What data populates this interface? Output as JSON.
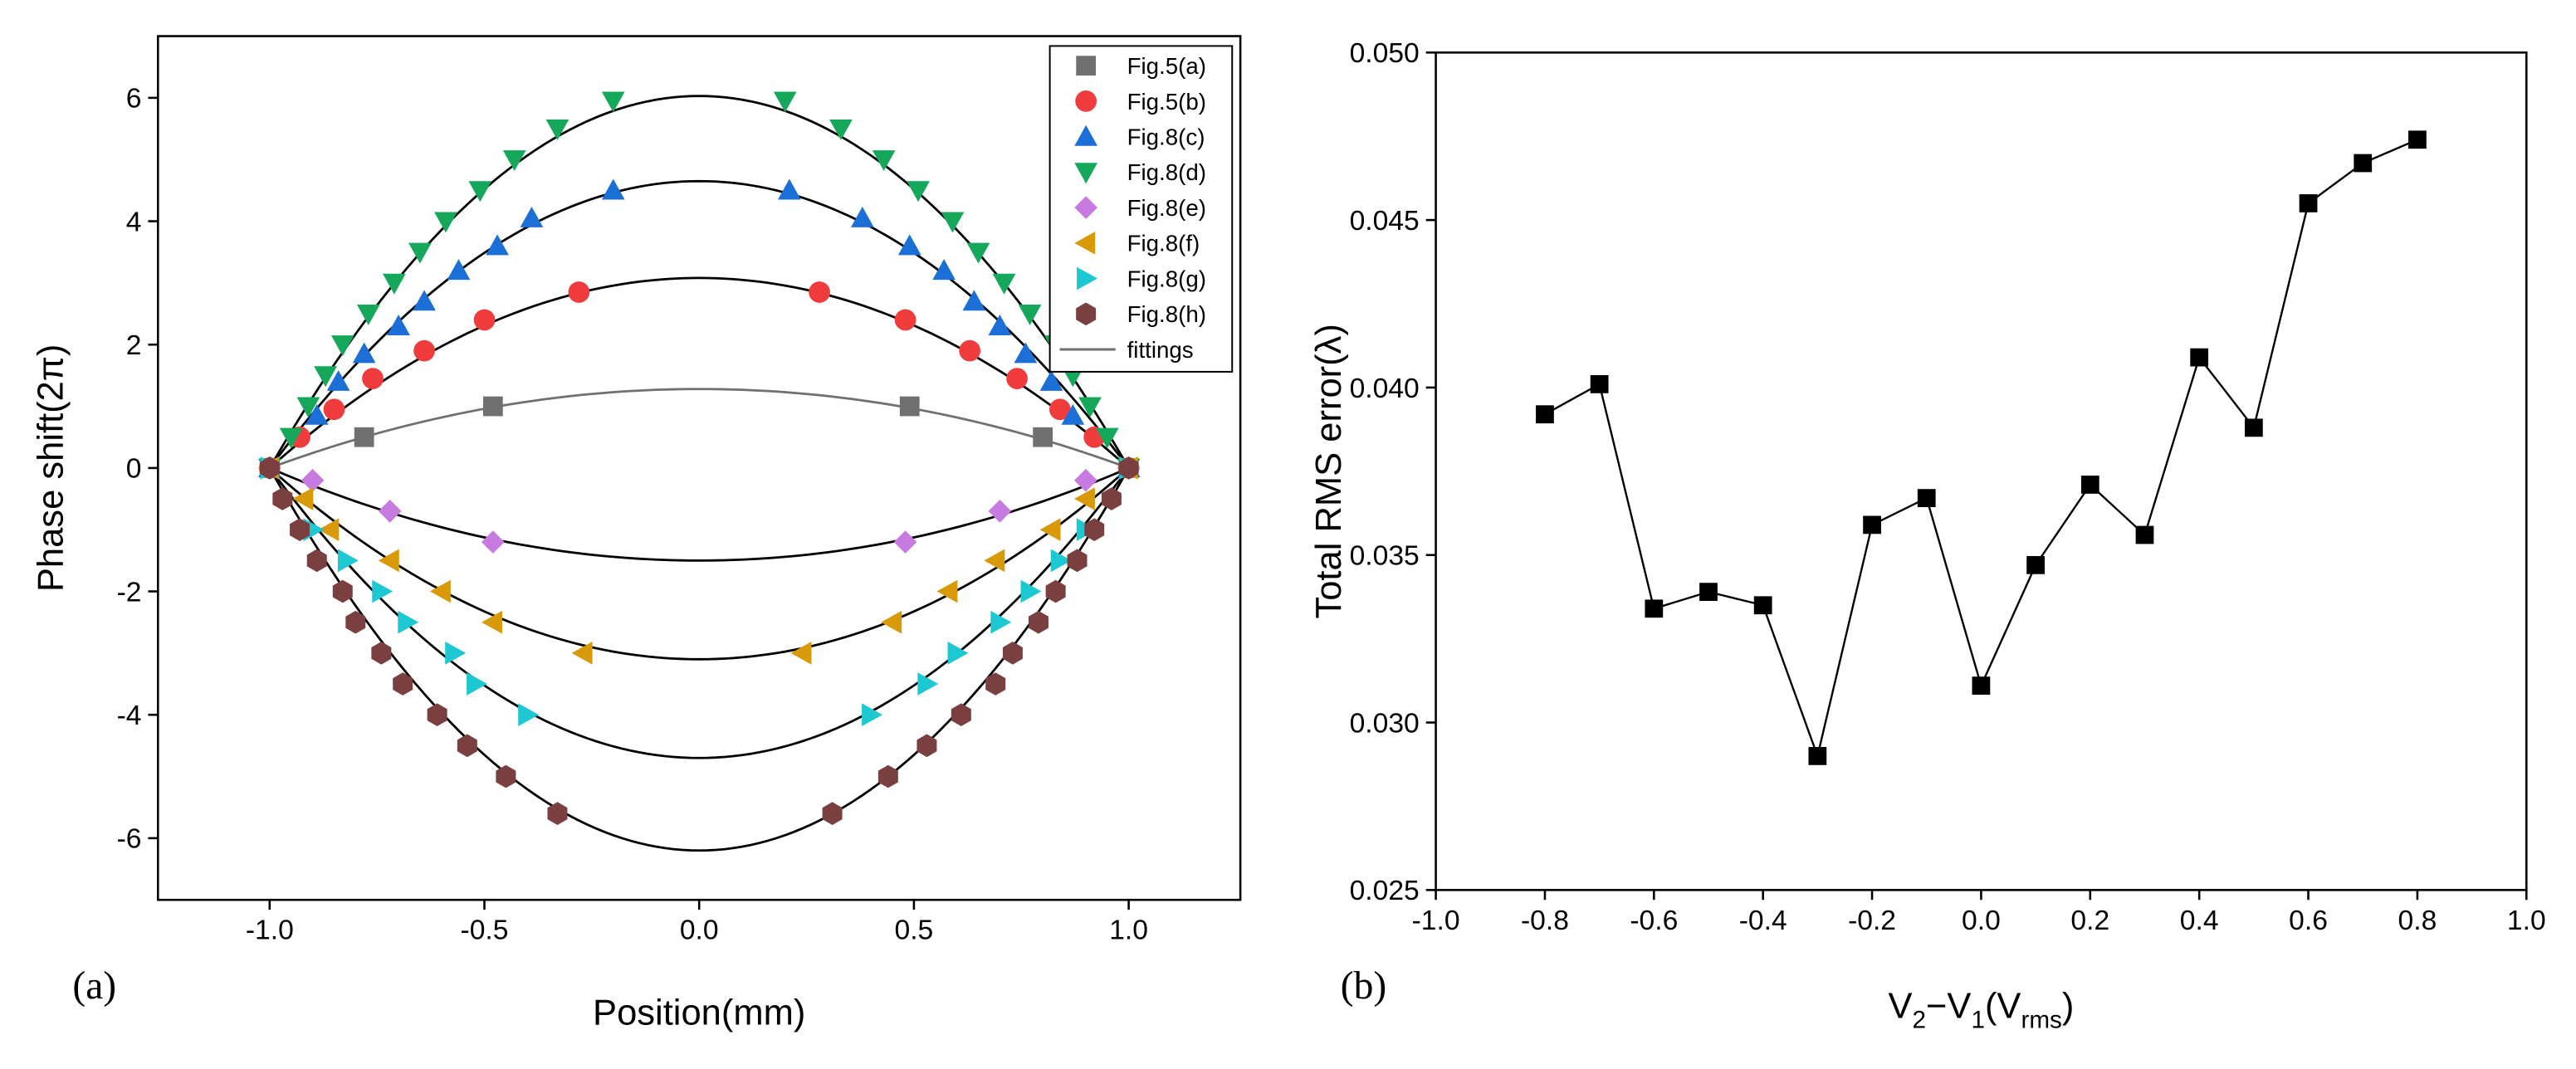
{
  "chart_data": [
    {
      "type": "scatter",
      "panel_label": "(a)",
      "x_label": "Position(mm)",
      "y_label": "Phase shift(2π)",
      "xlim": [
        -1.26,
        1.26
      ],
      "ylim": [
        -7,
        7
      ],
      "xticks": [
        {
          "value": -1,
          "label": "-1.0"
        },
        {
          "value": -0.5,
          "label": "-0.5"
        },
        {
          "value": 0,
          "label": "0.0"
        },
        {
          "value": 0.5,
          "label": "0.5"
        },
        {
          "value": 1,
          "label": "1.0"
        }
      ],
      "yticks": [
        -6,
        -4,
        -2,
        0,
        2,
        4,
        6
      ],
      "legend": "upper right",
      "series": [
        {
          "name": "Fig.5(a)",
          "color": "#707070",
          "marker": "square",
          "x": [
            -1,
            -0.78,
            -0.48,
            0.49,
            0.8,
            1
          ],
          "values": [
            0,
            0.5,
            1,
            1,
            0.5,
            0
          ]
        },
        {
          "name": "Fig.5(b)",
          "color": "#f03c3c",
          "marker": "circle",
          "x": [
            -1,
            -0.93,
            -0.85,
            -0.76,
            -0.64,
            -0.5,
            -0.28,
            0.28,
            0.48,
            0.63,
            0.74,
            0.84,
            0.92,
            1
          ],
          "values": [
            0,
            0.5,
            0.95,
            1.45,
            1.9,
            2.4,
            2.85,
            2.85,
            2.4,
            1.9,
            1.45,
            0.95,
            0.5,
            0
          ]
        },
        {
          "name": "Fig.8(c)",
          "color": "#1b6fd6",
          "marker": "triangle-up",
          "x": [
            -1,
            -0.89,
            -0.84,
            -0.78,
            -0.7,
            -0.64,
            -0.56,
            -0.47,
            -0.39,
            -0.2,
            0.21,
            0.38,
            0.49,
            0.57,
            0.64,
            0.7,
            0.76,
            0.82,
            0.87,
            1
          ],
          "values": [
            0,
            0.85,
            1.4,
            1.85,
            2.3,
            2.7,
            3.2,
            3.6,
            4.05,
            4.5,
            4.5,
            4.05,
            3.6,
            3.2,
            2.7,
            2.3,
            1.85,
            1.4,
            0.85,
            0
          ]
        },
        {
          "name": "Fig.8(d)",
          "color": "#15a85a",
          "marker": "triangle-down",
          "x": [
            -1,
            -0.95,
            -0.91,
            -0.87,
            -0.83,
            -0.77,
            -0.71,
            -0.65,
            -0.59,
            -0.51,
            -0.43,
            -0.33,
            -0.2,
            0.2,
            0.33,
            0.43,
            0.51,
            0.59,
            0.65,
            0.71,
            0.77,
            0.83,
            0.87,
            0.91,
            0.95,
            1
          ],
          "values": [
            0,
            0.5,
            1,
            1.5,
            2,
            2.5,
            3,
            3.5,
            4,
            4.5,
            5,
            5.5,
            5.95,
            5.95,
            5.5,
            5,
            4.5,
            4,
            3.5,
            3,
            2.5,
            2,
            1.5,
            1,
            0.5,
            0
          ]
        },
        {
          "name": "Fig.8(e)",
          "color": "#c77be0",
          "marker": "diamond",
          "x": [
            -1,
            -0.9,
            -0.72,
            -0.48,
            0.48,
            0.7,
            0.9,
            1
          ],
          "values": [
            0,
            -0.2,
            -0.7,
            -1.2,
            -1.2,
            -0.7,
            -0.2,
            0
          ]
        },
        {
          "name": "Fig.8(f)",
          "color": "#d99a0a",
          "marker": "triangle-left",
          "x": [
            -1,
            -0.92,
            -0.86,
            -0.72,
            -0.6,
            -0.48,
            -0.27,
            0.24,
            0.45,
            0.58,
            0.69,
            0.82,
            0.9,
            1
          ],
          "values": [
            0,
            -0.5,
            -1,
            -1.5,
            -2,
            -2.5,
            -3,
            -3,
            -2.5,
            -2,
            -1.5,
            -1,
            -0.5,
            0
          ]
        },
        {
          "name": "Fig.8(g)",
          "color": "#1ec8d2",
          "marker": "triangle-right",
          "x": [
            -1,
            -0.9,
            -0.82,
            -0.74,
            -0.68,
            -0.57,
            -0.52,
            -0.4,
            0.4,
            0.53,
            0.6,
            0.7,
            0.77,
            0.84,
            0.9,
            1
          ],
          "values": [
            0,
            -1,
            -1.5,
            -2,
            -2.5,
            -3,
            -3.5,
            -4,
            -4,
            -3.5,
            -3,
            -2.5,
            -2,
            -1.5,
            -1,
            0
          ]
        },
        {
          "name": "Fig.8(h)",
          "color": "#7a4040",
          "marker": "hexagon",
          "x": [
            -1,
            -0.97,
            -0.93,
            -0.89,
            -0.83,
            -0.8,
            -0.74,
            -0.69,
            -0.61,
            -0.54,
            -0.45,
            -0.33,
            0.31,
            0.44,
            0.53,
            0.61,
            0.69,
            0.73,
            0.79,
            0.83,
            0.88,
            0.92,
            0.96,
            1
          ],
          "values": [
            0,
            -0.5,
            -1,
            -1.5,
            -2,
            -2.5,
            -3,
            -3.5,
            -4,
            -4.5,
            -5,
            -5.6,
            -5.6,
            -5,
            -4.5,
            -4,
            -3.5,
            -3,
            -2.5,
            -2,
            -1.5,
            -1,
            -0.5,
            0
          ]
        },
        {
          "name": "fittings",
          "color": "#707070",
          "marker": "line",
          "fit_peaks": [
            1.28,
            3.08,
            4.65,
            6.03,
            -1.5,
            -3.1,
            -4.7,
            -6.2
          ],
          "curve_colors": [
            "#707070",
            "#000000",
            "#000000",
            "#000000",
            "#000000",
            "#000000",
            "#000000",
            "#000000"
          ]
        }
      ]
    },
    {
      "type": "line",
      "panel_label": "(b)",
      "x_label_parts": [
        "V",
        "2",
        "−V",
        "1",
        "(V",
        "rms",
        ")"
      ],
      "y_label": "Total RMS error(λ)",
      "xlim": [
        -1,
        1
      ],
      "ylim": [
        0.025,
        0.05
      ],
      "xticks": [
        {
          "value": -1,
          "label": "-1.0"
        },
        {
          "value": -0.8,
          "label": "-0.8"
        },
        {
          "value": -0.6,
          "label": "-0.6"
        },
        {
          "value": -0.4,
          "label": "-0.4"
        },
        {
          "value": -0.2,
          "label": "-0.2"
        },
        {
          "value": 0,
          "label": "0.0"
        },
        {
          "value": 0.2,
          "label": "0.2"
        },
        {
          "value": 0.4,
          "label": "0.4"
        },
        {
          "value": 0.6,
          "label": "0.6"
        },
        {
          "value": 0.8,
          "label": "0.8"
        },
        {
          "value": 1,
          "label": "1.0"
        }
      ],
      "yticks": [
        {
          "value": 0.025,
          "label": "0.025"
        },
        {
          "value": 0.03,
          "label": "0.030"
        },
        {
          "value": 0.035,
          "label": "0.035"
        },
        {
          "value": 0.04,
          "label": "0.040"
        },
        {
          "value": 0.045,
          "label": "0.045"
        },
        {
          "value": 0.05,
          "label": "0.050"
        }
      ],
      "color": "#000000",
      "x": [
        -0.8,
        -0.7,
        -0.6,
        -0.5,
        -0.4,
        -0.3,
        -0.2,
        -0.1,
        0,
        0.1,
        0.2,
        0.3,
        0.4,
        0.5,
        0.6,
        0.7,
        0.8
      ],
      "values": [
        0.0392,
        0.0401,
        0.0334,
        0.0339,
        0.0335,
        0.029,
        0.0359,
        0.0367,
        0.0311,
        0.0347,
        0.0371,
        0.0356,
        0.0409,
        0.0388,
        0.0455,
        0.0467,
        0.0474
      ]
    }
  ]
}
